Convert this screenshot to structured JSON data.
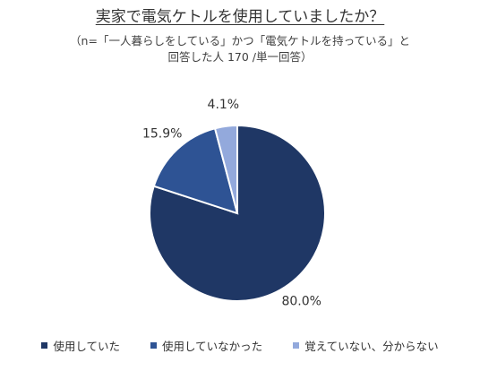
{
  "chart_data": {
    "type": "pie",
    "title": "実家で電気ケトルを使用していましたか？",
    "subtitle_lines": [
      "（n=「一人暮らしをしている」かつ「電気ケトルを持っている」と",
      "回答した人 170 /単一回答）"
    ],
    "categories": [
      "使用していた",
      "使用していなかった",
      "覚えていない、分からない"
    ],
    "values": [
      80.0,
      15.9,
      4.1
    ],
    "labels": [
      "80.0%",
      "15.9%",
      "4.1%"
    ],
    "colors": [
      "#1f3765",
      "#2e5394",
      "#93a9dc"
    ],
    "legend_position": "bottom"
  }
}
